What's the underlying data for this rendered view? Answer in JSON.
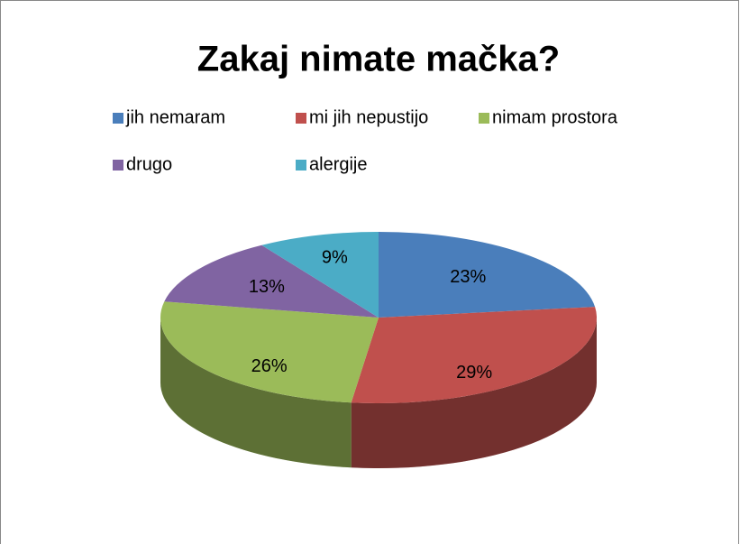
{
  "chart_data": {
    "type": "pie3d",
    "title": "Zakaj nimate mačka?",
    "categories": [
      "jih nemaram",
      "mi jih nepustijo",
      "nimam prostora",
      "drugo",
      "alergije"
    ],
    "values": [
      23,
      29,
      26,
      13,
      9
    ],
    "value_labels": [
      "23%",
      "29%",
      "26%",
      "13%",
      "9%"
    ],
    "colors": [
      "#4a7ebb",
      "#c0504d",
      "#9bbb59",
      "#8064a2",
      "#4bacc6"
    ],
    "legend": "top"
  }
}
